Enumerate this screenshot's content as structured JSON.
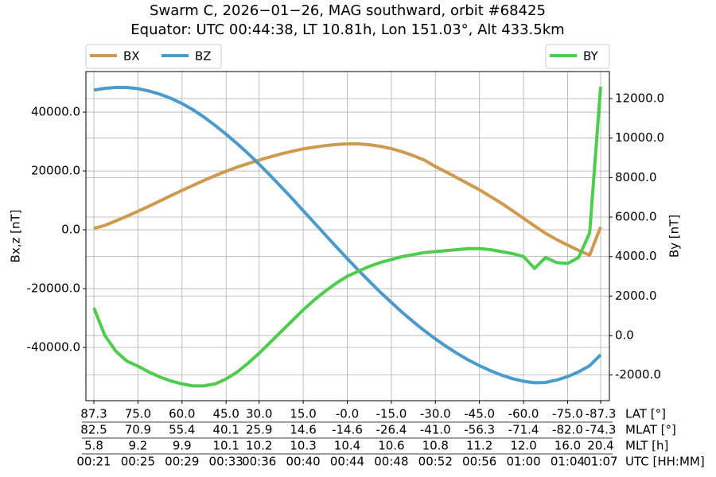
{
  "chart_data": {
    "type": "line",
    "title": "Swarm C, 2026−01−26, MAG southward, orbit #68425",
    "subtitle": "Equator: UTC 00:44:38, LT 10.81h, Lon 151.03°, Alt 433.5km",
    "ylabel": "Bx,z [nT]",
    "y2label": "By [nT]",
    "xlabel": "UTC [HH:MM]",
    "x": [
      "00:21",
      "00:22",
      "00:23",
      "00:24",
      "00:25",
      "00:26",
      "00:27",
      "00:28",
      "00:29",
      "00:30",
      "00:31",
      "00:32",
      "00:33",
      "00:34",
      "00:35",
      "00:36",
      "00:37",
      "00:38",
      "00:39",
      "00:40",
      "00:41",
      "00:42",
      "00:43",
      "00:44",
      "00:45",
      "00:46",
      "00:47",
      "00:48",
      "00:49",
      "00:50",
      "00:51",
      "00:52",
      "00:53",
      "00:54",
      "00:55",
      "00:56",
      "00:57",
      "00:58",
      "00:59",
      "01:00",
      "01:01",
      "01:02",
      "01:03",
      "01:04",
      "01:05",
      "01:06",
      "01:07"
    ],
    "series": [
      {
        "name": "BX",
        "color": "#cf9a4f",
        "axis": "y",
        "legend": "upper left",
        "values": [
          500,
          1500,
          3000,
          4600,
          6300,
          8000,
          9800,
          11600,
          13400,
          15100,
          16800,
          18400,
          19900,
          21300,
          22500,
          23700,
          24800,
          25800,
          26700,
          27500,
          28100,
          28600,
          29000,
          29200,
          29200,
          28900,
          28400,
          27600,
          26500,
          25200,
          23700,
          21500,
          19600,
          17600,
          15600,
          13600,
          11300,
          9000,
          6500,
          3900,
          1300,
          -1200,
          -3300,
          -5200,
          -7000,
          -8600,
          1000
        ]
      },
      {
        "name": "BZ",
        "color": "#4a9bcc",
        "axis": "y",
        "legend": "upper left",
        "values": [
          47500,
          48100,
          48400,
          48400,
          48000,
          47200,
          46100,
          44700,
          42900,
          40800,
          38300,
          35500,
          32500,
          29300,
          25900,
          22300,
          18500,
          14600,
          10600,
          6500,
          2400,
          -1700,
          -5800,
          -9800,
          -13700,
          -17500,
          -21200,
          -24700,
          -28100,
          -31300,
          -34300,
          -37100,
          -39700,
          -42100,
          -44300,
          -46200,
          -47900,
          -49400,
          -50600,
          -51500,
          -52000,
          -51900,
          -51100,
          -49900,
          -48300,
          -46200,
          -42500
        ]
      },
      {
        "name": "BY",
        "color": "#4ecc4e",
        "axis": "y2",
        "legend": "upper right",
        "values": [
          1400,
          0,
          -800,
          -1300,
          -1550,
          -1850,
          -2100,
          -2300,
          -2450,
          -2550,
          -2550,
          -2450,
          -2200,
          -1850,
          -1400,
          -900,
          -350,
          200,
          750,
          1300,
          1800,
          2250,
          2650,
          3000,
          3250,
          3500,
          3700,
          3850,
          4000,
          4100,
          4200,
          4250,
          4300,
          4350,
          4400,
          4400,
          4350,
          4250,
          4150,
          4000,
          3400,
          3950,
          3700,
          3650,
          3950,
          5200,
          12600
        ]
      }
    ],
    "xlim": [
      "00:21",
      "01:07"
    ],
    "xticks": [
      "00:21",
      "00:25",
      "00:29",
      "00:33",
      "00:36",
      "00:40",
      "00:44",
      "00:48",
      "00:52",
      "00:56",
      "01:00",
      "01:04",
      "01:07"
    ],
    "xtick_rows": [
      {
        "name": "LAT [°]",
        "labels": [
          "87.3",
          "75.0",
          "60.0",
          "45.0",
          "30.0",
          "15.0",
          "-0.0",
          "-15.0",
          "-30.0",
          "-45.0",
          "-60.0",
          "-75.0",
          "-87.3"
        ]
      },
      {
        "name": "MLAT [°]",
        "labels": [
          "82.5",
          "70.9",
          "55.4",
          "40.1",
          "25.9",
          "14.6",
          "-14.6",
          "-26.4",
          "-41.0",
          "-56.3",
          "-71.4",
          "-82.0",
          "-74.3"
        ]
      },
      {
        "name": "MLT [h]",
        "labels": [
          "5.8",
          "9.2",
          "9.9",
          "10.1",
          "10.2",
          "10.3",
          "10.4",
          "10.6",
          "10.8",
          "11.2",
          "12.0",
          "16.0",
          "20.4"
        ]
      }
    ],
    "ylim": [
      -58100,
      53800
    ],
    "yticks": [
      {
        "value": -40000,
        "label": "-40000.0"
      },
      {
        "value": -20000,
        "label": "-20000.0"
      },
      {
        "value": 0,
        "label": "0.0"
      },
      {
        "value": 20000,
        "label": "20000.0"
      },
      {
        "value": 40000,
        "label": "40000.0"
      }
    ],
    "y2lim": [
      -3300,
      13370
    ],
    "y2ticks": [
      {
        "value": -2000,
        "label": "-2000.0"
      },
      {
        "value": 0,
        "label": "0.0"
      },
      {
        "value": 2000,
        "label": "2000.0"
      },
      {
        "value": 4000,
        "label": "4000.0"
      },
      {
        "value": 6000,
        "label": "6000.0"
      },
      {
        "value": 8000,
        "label": "8000.0"
      },
      {
        "value": 10000,
        "label": "10000.0"
      },
      {
        "value": 12000,
        "label": "12000.0"
      }
    ],
    "grid": true
  }
}
